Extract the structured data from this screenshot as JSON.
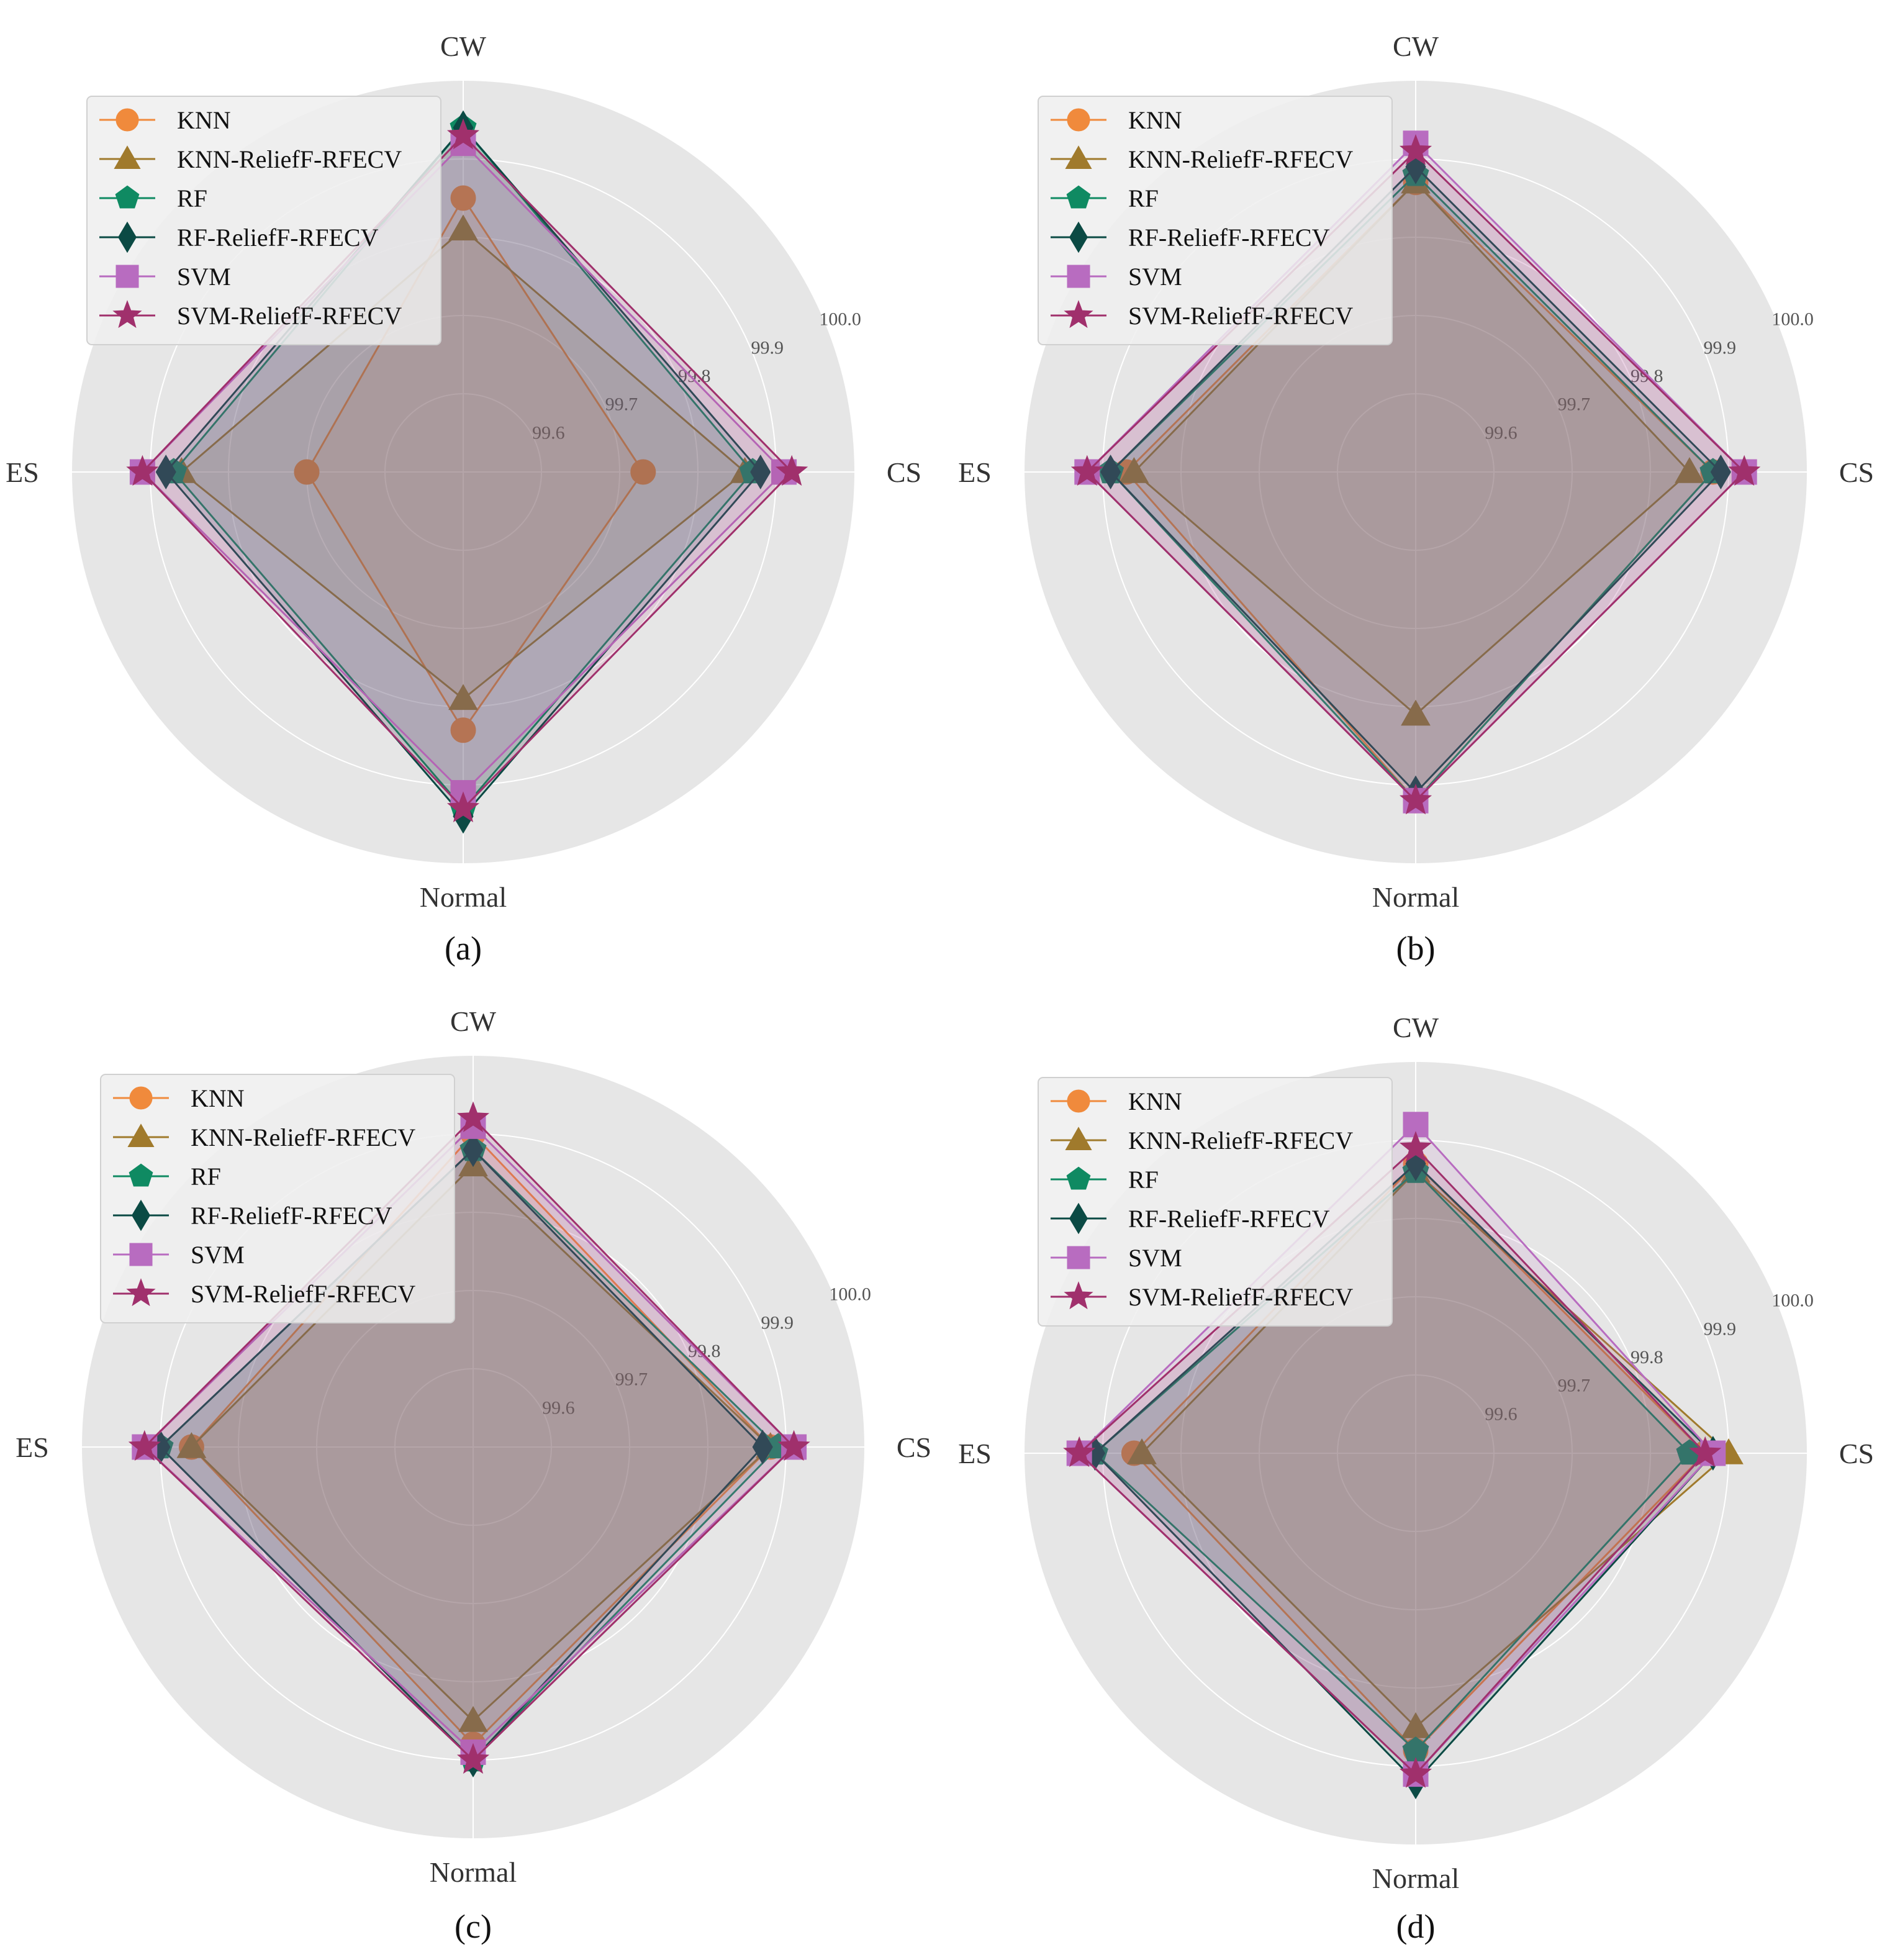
{
  "colors": {
    "KNN": "#f08a3c",
    "KNN-ReliefF-RFECV": "#a07a2c",
    "RF": "#0f8a62",
    "RF-ReliefF-RFECV": "#0b4a44",
    "SVM": "#b86cc0",
    "SVM-ReliefF-RFECV": "#a0306c",
    "background": "#e6e6e6",
    "grid": "#ffffff"
  },
  "chart_data": [
    {
      "type": "radar",
      "panel_label": "(a)",
      "axes": [
        "CW",
        "CS",
        "Normal",
        "ES"
      ],
      "rlim": [
        99.5,
        100.0
      ],
      "rticks": [
        "99.6",
        "99.7",
        "99.8",
        "99.9",
        "100.0"
      ],
      "legend_position": "top-left",
      "series": [
        {
          "name": "KNN",
          "marker": "circle",
          "values": [
            99.85,
            99.73,
            99.83,
            99.7
          ]
        },
        {
          "name": "KNN-ReliefF-RFECV",
          "marker": "triangle",
          "values": [
            99.81,
            99.86,
            99.79,
            99.86
          ]
        },
        {
          "name": "RF",
          "marker": "pentagon",
          "values": [
            99.94,
            99.87,
            99.93,
            99.87
          ]
        },
        {
          "name": "RF-ReliefF-RFECV",
          "marker": "diamond",
          "values": [
            99.94,
            99.88,
            99.94,
            99.88
          ]
        },
        {
          "name": "SVM",
          "marker": "square",
          "values": [
            99.92,
            99.91,
            99.91,
            99.91
          ]
        },
        {
          "name": "SVM-ReliefF-RFECV",
          "marker": "star",
          "values": [
            99.93,
            99.92,
            99.93,
            99.91
          ]
        }
      ]
    },
    {
      "type": "radar",
      "panel_label": "(b)",
      "axes": [
        "CW",
        "CS",
        "Normal",
        "ES"
      ],
      "rlim": [
        99.5,
        100.0
      ],
      "rticks": [
        "99.6",
        "99.7",
        "99.8",
        "99.9",
        "100.0"
      ],
      "legend_position": "top-left",
      "series": [
        {
          "name": "KNN",
          "marker": "circle",
          "values": [
            99.87,
            99.88,
            99.92,
            99.87
          ]
        },
        {
          "name": "KNN-ReliefF-RFECV",
          "marker": "triangle",
          "values": [
            99.87,
            99.85,
            99.81,
            99.86
          ]
        },
        {
          "name": "RF",
          "marker": "pentagon",
          "values": [
            99.88,
            99.88,
            99.92,
            99.89
          ]
        },
        {
          "name": "RF-ReliefF-RFECV",
          "marker": "diamond",
          "values": [
            99.89,
            99.89,
            99.91,
            99.89
          ]
        },
        {
          "name": "SVM",
          "marker": "square",
          "values": [
            99.92,
            99.92,
            99.92,
            99.92
          ]
        },
        {
          "name": "SVM-ReliefF-RFECV",
          "marker": "star",
          "values": [
            99.91,
            99.92,
            99.92,
            99.92
          ]
        }
      ]
    },
    {
      "type": "radar",
      "panel_label": "(c)",
      "axes": [
        "CW",
        "CS",
        "Normal",
        "ES"
      ],
      "rlim": [
        99.5,
        100.0
      ],
      "rticks": [
        "99.6",
        "99.7",
        "99.8",
        "99.9",
        "100.0"
      ],
      "legend_position": "top-left",
      "series": [
        {
          "name": "KNN",
          "marker": "circle",
          "values": [
            99.9,
            99.88,
            99.88,
            99.86
          ]
        },
        {
          "name": "KNN-ReliefF-RFECV",
          "marker": "triangle",
          "values": [
            99.86,
            99.88,
            99.85,
            99.86
          ]
        },
        {
          "name": "RF",
          "marker": "pentagon",
          "values": [
            99.88,
            99.89,
            99.9,
            99.9
          ]
        },
        {
          "name": "RF-ReliefF-RFECV",
          "marker": "diamond",
          "values": [
            99.88,
            99.87,
            99.9,
            99.9
          ]
        },
        {
          "name": "SVM",
          "marker": "square",
          "values": [
            99.91,
            99.91,
            99.89,
            99.92
          ]
        },
        {
          "name": "SVM-ReliefF-RFECV",
          "marker": "star",
          "values": [
            99.92,
            99.91,
            99.9,
            99.92
          ]
        }
      ]
    },
    {
      "type": "radar",
      "panel_label": "(d)",
      "axes": [
        "CW",
        "CS",
        "Normal",
        "ES"
      ],
      "rlim": [
        99.5,
        100.0
      ],
      "rticks": [
        "99.6",
        "99.7",
        "99.8",
        "99.9",
        "100.0"
      ],
      "legend_position": "top-left",
      "series": [
        {
          "name": "KNN",
          "marker": "circle",
          "values": [
            99.87,
            99.87,
            99.88,
            99.86
          ]
        },
        {
          "name": "KNN-ReliefF-RFECV",
          "marker": "triangle",
          "values": [
            99.86,
            99.9,
            99.85,
            99.85
          ]
        },
        {
          "name": "RF",
          "marker": "pentagon",
          "values": [
            99.86,
            99.85,
            99.88,
            99.91
          ]
        },
        {
          "name": "RF-ReliefF-RFECV",
          "marker": "diamond",
          "values": [
            99.87,
            99.88,
            99.92,
            99.91
          ]
        },
        {
          "name": "SVM",
          "marker": "square",
          "values": [
            99.92,
            99.88,
            99.91,
            99.93
          ]
        },
        {
          "name": "SVM-ReliefF-RFECV",
          "marker": "star",
          "values": [
            99.89,
            99.87,
            99.91,
            99.93
          ]
        }
      ]
    }
  ]
}
